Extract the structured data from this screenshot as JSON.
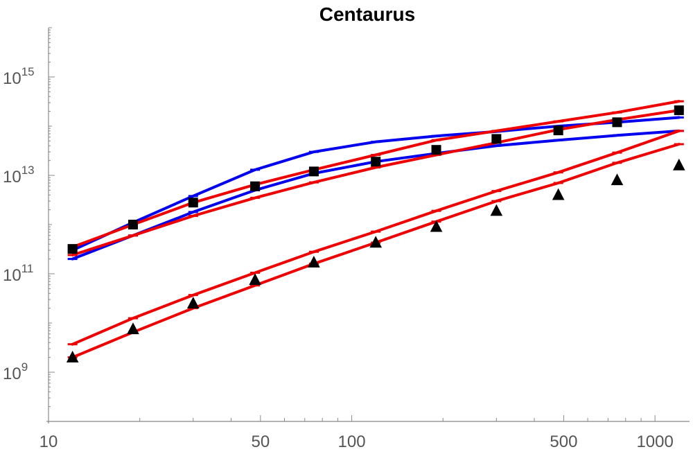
{
  "chart_data": {
    "type": "line",
    "title": "Centaurus",
    "xscale": "log",
    "yscale": "log",
    "xlim": [
      10,
      1300
    ],
    "ylim": [
      100000000.0,
      1e+16
    ],
    "grid": false,
    "legend": "none",
    "x_ticks": [
      {
        "value": 10,
        "label": "10"
      },
      {
        "value": 50,
        "label": "50"
      },
      {
        "value": 100,
        "label": "100"
      },
      {
        "value": 500,
        "label": "500"
      },
      {
        "value": 1000,
        "label": "1000"
      }
    ],
    "y_ticks": [
      {
        "value": 1000000000.0,
        "base": "10",
        "exp": "9"
      },
      {
        "value": 100000000000.0,
        "base": "10",
        "exp": "11"
      },
      {
        "value": 10000000000000.0,
        "base": "10",
        "exp": "13"
      },
      {
        "value": 1000000000000000.0,
        "base": "10",
        "exp": "15"
      }
    ],
    "x": [
      12,
      19,
      30,
      48,
      75,
      120,
      190,
      300,
      480,
      750,
      1200
    ],
    "series": [
      {
        "kind": "line",
        "color": "#0000ee",
        "values": [
          200000000000.0,
          600000000000.0,
          1800000000000.0,
          5000000000000.0,
          11000000000000.0,
          19000000000000.0,
          28000000000000.0,
          40000000000000.0,
          52000000000000.0,
          65000000000000.0,
          80000000000000.0
        ]
      },
      {
        "kind": "line",
        "color": "#0000ee",
        "values": [
          300000000000.0,
          1100000000000.0,
          3800000000000.0,
          13000000000000.0,
          30000000000000.0,
          48000000000000.0,
          63000000000000.0,
          78000000000000.0,
          100000000000000.0,
          120000000000000.0,
          150000000000000.0
        ]
      },
      {
        "kind": "line",
        "color": "#ee0000",
        "values": [
          350000000000.0,
          1000000000000.0,
          2800000000000.0,
          6500000000000.0,
          13000000000000.0,
          26000000000000.0,
          52000000000000.0,
          80000000000000.0,
          125000000000000.0,
          190000000000000.0,
          320000000000000.0
        ]
      },
      {
        "kind": "line",
        "color": "#ee0000",
        "values": [
          240000000000.0,
          600000000000.0,
          1500000000000.0,
          3500000000000.0,
          7200000000000.0,
          14500000000000.0,
          26000000000000.0,
          46000000000000.0,
          85000000000000.0,
          135000000000000.0,
          210000000000000.0
        ]
      },
      {
        "kind": "line",
        "color": "#ee0000",
        "values": [
          3700000000.0,
          12500000000.0,
          37000000000.0,
          105000000000.0,
          280000000000.0,
          720000000000.0,
          1900000000000.0,
          4800000000000.0,
          11500000000000.0,
          29000000000000.0,
          80000000000000.0
        ]
      },
      {
        "kind": "line",
        "color": "#ee0000",
        "values": [
          2000000000.0,
          6500000000.0,
          20000000000.0,
          58000000000.0,
          160000000000.0,
          430000000000.0,
          1150000000000.0,
          3000000000000.0,
          7000000000000.0,
          18000000000000.0,
          43000000000000.0
        ]
      },
      {
        "kind": "markers",
        "marker": "square",
        "color": "#000000",
        "values": [
          320000000000.0,
          1000000000000.0,
          2800000000000.0,
          6000000000000.0,
          12000000000000.0,
          19000000000000.0,
          33000000000000.0,
          55000000000000.0,
          82000000000000.0,
          120000000000000.0,
          210000000000000.0
        ]
      },
      {
        "kind": "markers",
        "marker": "triangle",
        "color": "#000000",
        "values": [
          2000000000.0,
          7500000000.0,
          25000000000.0,
          75000000000.0,
          170000000000.0,
          430000000000.0,
          900000000000.0,
          1900000000000.0,
          4000000000000.0,
          8000000000000.0,
          16000000000000.0
        ]
      }
    ]
  }
}
